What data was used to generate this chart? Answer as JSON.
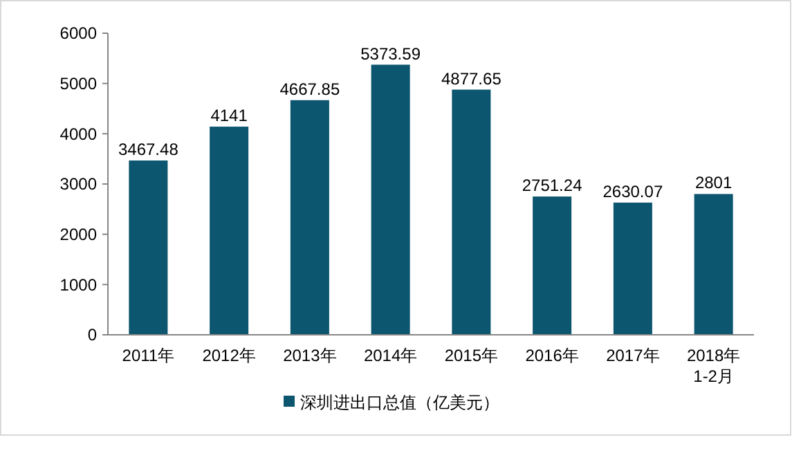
{
  "chart_data": {
    "type": "bar",
    "categories": [
      "2011年",
      "2012年",
      "2013年",
      "2014年",
      "2015年",
      "2016年",
      "2017年",
      "2018年\n1-2月"
    ],
    "series": [
      {
        "name": "深圳进出口总值（亿美元）",
        "color": "#0d5670",
        "values": [
          3467.48,
          4141,
          4667.85,
          5373.59,
          4877.65,
          2751.24,
          2630.07,
          2801
        ]
      }
    ],
    "ylim": [
      0,
      6000
    ],
    "yticks": [
      0,
      1000,
      2000,
      3000,
      4000,
      5000,
      6000
    ],
    "grid": false,
    "legend": "bottom",
    "data_labels": true
  }
}
